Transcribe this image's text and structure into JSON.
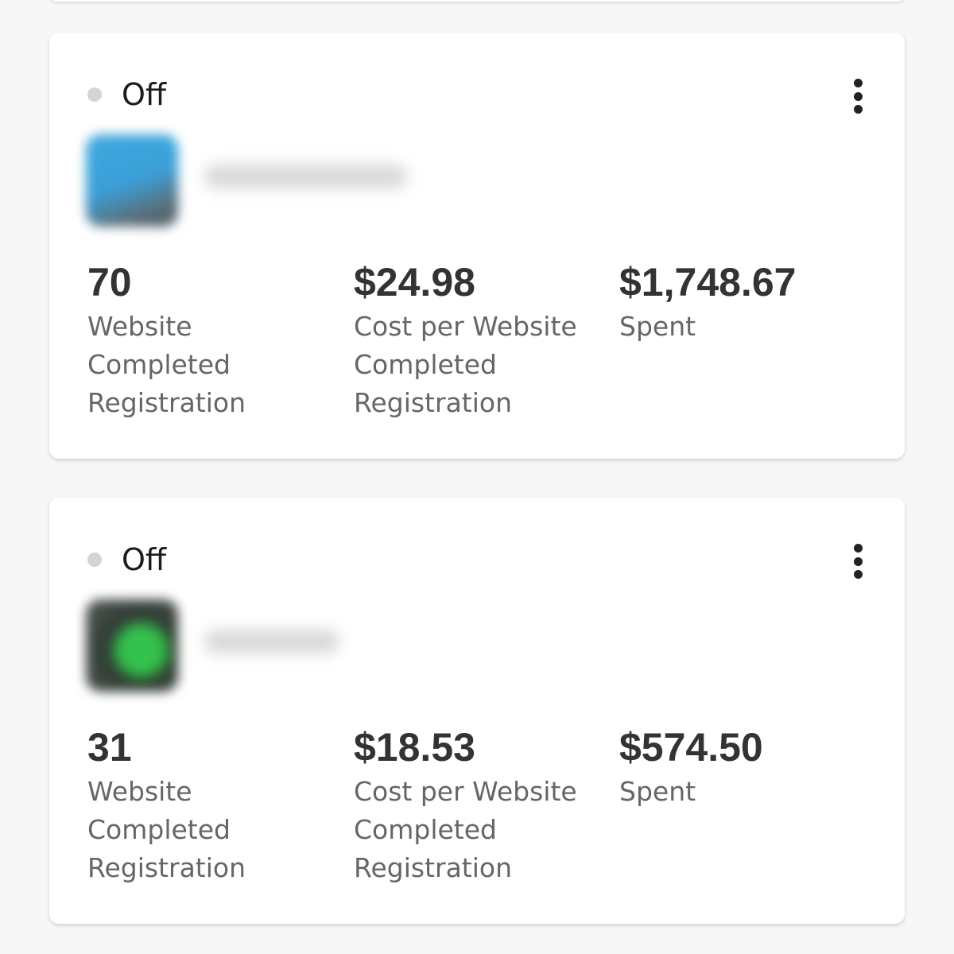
{
  "campaigns": [
    {
      "status": "Off",
      "status_color": "#d4d4d4",
      "avatar_icon": "campaign-thumbnail-blurred",
      "metrics": [
        {
          "value": "70",
          "label": "Website Completed Registration"
        },
        {
          "value": "$24.98",
          "label": "Cost per Website Completed Registration"
        },
        {
          "value": "$1,748.67",
          "label": "Spent"
        }
      ]
    },
    {
      "status": "Off",
      "status_color": "#d4d4d4",
      "avatar_icon": "campaign-thumbnail-blurred",
      "metrics": [
        {
          "value": "31",
          "label": "Website Completed Registration"
        },
        {
          "value": "$18.53",
          "label": "Cost per Website Completed Registration"
        },
        {
          "value": "$574.50",
          "label": "Spent"
        }
      ]
    }
  ]
}
